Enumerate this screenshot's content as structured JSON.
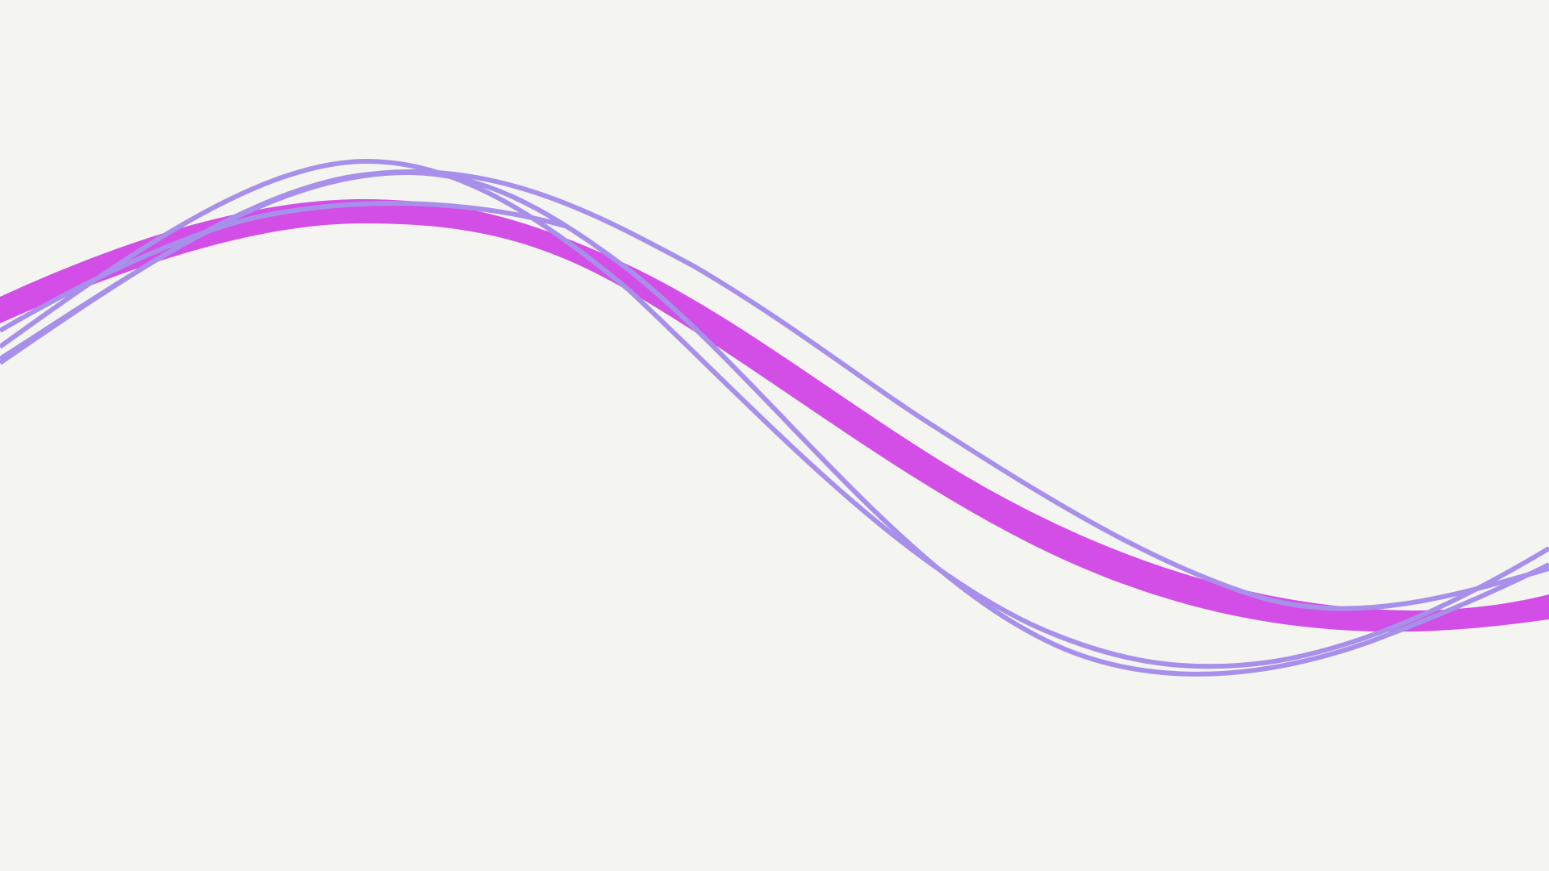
{
  "scene": {
    "background_color": "#f4f5f1",
    "wave_color_magenta": "#d24ee6",
    "wave_color_lavender": "#a890ea",
    "shapes": [
      "magenta-band",
      "lavender-wave-1",
      "lavender-wave-2",
      "lavender-wave-3",
      "lavender-wave-4"
    ]
  }
}
